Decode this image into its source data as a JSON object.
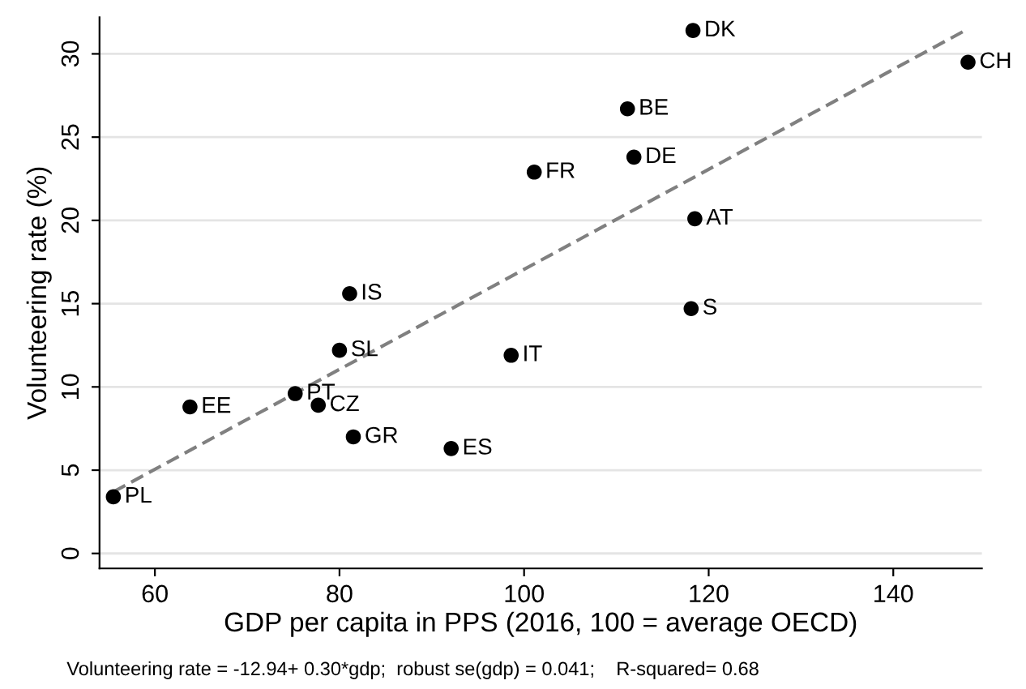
{
  "chart_data": {
    "type": "scatter",
    "xlabel": "GDP per capita in PPS (2016, 100 = average OECD)",
    "ylabel": "Volunteering rate (%)",
    "xlim": [
      54,
      149.6
    ],
    "ylim": [
      -0.9,
      32.2
    ],
    "xticks": [
      60,
      80,
      100,
      120,
      140
    ],
    "yticks": [
      0,
      5,
      10,
      15,
      20,
      25,
      30
    ],
    "grid": "y",
    "legend": false,
    "series": [
      {
        "marker": "circle",
        "color": "#000000",
        "x": [
          55.5,
          63.8,
          75.2,
          77.7,
          80.0,
          81.1,
          81.5,
          92.1,
          98.6,
          118.1,
          118.3,
          148.1,
          111.2,
          111.9,
          101.1,
          118.5
        ],
        "values": [
          3.4,
          8.8,
          9.6,
          8.9,
          12.2,
          15.6,
          7.0,
          6.3,
          11.9,
          14.7,
          31.4,
          29.5,
          26.7,
          23.8,
          22.9,
          20.1
        ]
      },
      {
        "type": "line",
        "color": "#808080",
        "line_style": "dashed",
        "x": [
          55.5,
          148.1
        ],
        "values": [
          3.7,
          31.5
        ]
      }
    ],
    "annotations": [
      {
        "text": "PL",
        "x": 55.5,
        "y": 3.4
      },
      {
        "text": "EE",
        "x": 63.8,
        "y": 8.8
      },
      {
        "text": "PT",
        "x": 75.2,
        "y": 9.6
      },
      {
        "text": "CZ",
        "x": 77.7,
        "y": 8.9
      },
      {
        "text": "SL",
        "x": 80.0,
        "y": 12.2
      },
      {
        "text": "IS",
        "x": 81.1,
        "y": 15.6
      },
      {
        "text": "GR",
        "x": 81.5,
        "y": 7.0
      },
      {
        "text": "ES",
        "x": 92.1,
        "y": 6.3
      },
      {
        "text": "IT",
        "x": 98.6,
        "y": 11.9
      },
      {
        "text": "S",
        "x": 118.1,
        "y": 14.7
      },
      {
        "text": "DK",
        "x": 118.3,
        "y": 31.4
      },
      {
        "text": "CH",
        "x": 148.1,
        "y": 29.5
      },
      {
        "text": "BE",
        "x": 111.2,
        "y": 26.7
      },
      {
        "text": "DE",
        "x": 111.9,
        "y": 23.8
      },
      {
        "text": "FR",
        "x": 101.1,
        "y": 22.9
      },
      {
        "text": "AT",
        "x": 118.5,
        "y": 20.1
      },
      "Volunteering rate = -12.94+ 0.30*gdp;  robust se(gdp) = 0.041;    R-squared= 0.68"
    ]
  }
}
